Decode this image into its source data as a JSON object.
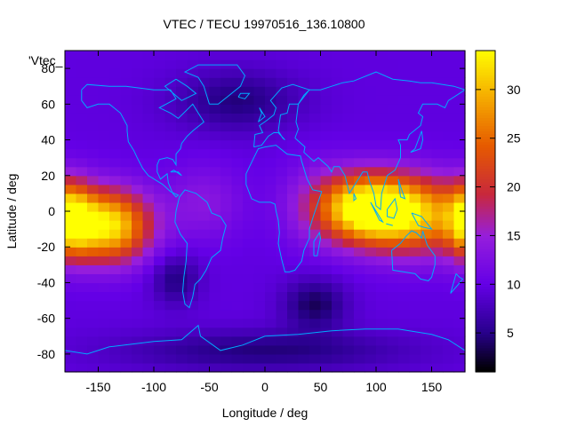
{
  "chart_data": {
    "type": "heatmap",
    "title": "VTEC / TECU 19970516_136.10800",
    "xlabel": "Longitude / deg",
    "ylabel": "Latitude / deg",
    "key_label": "'Vtec_",
    "xlim": [
      -180,
      180
    ],
    "ylim": [
      -90,
      90
    ],
    "x_ticks": [
      -150,
      -100,
      -50,
      0,
      50,
      100,
      150
    ],
    "y_ticks": [
      -80,
      -60,
      -40,
      -20,
      0,
      20,
      40,
      60,
      80
    ],
    "colorbar": {
      "range": [
        1,
        34
      ],
      "ticks": [
        5,
        10,
        15,
        20,
        25,
        30
      ],
      "palette": "black-blue-purple-red-orange-yellow"
    },
    "grid": false,
    "field": {
      "description_units": "TECU",
      "background_value": 9.5,
      "features": [
        {
          "lon": 90,
          "lat": 2,
          "peak": 23,
          "sigma_lon": 30,
          "sigma_lat": 13
        },
        {
          "lon": 135,
          "lat": -2,
          "peak": 18,
          "sigma_lon": 35,
          "sigma_lat": 15
        },
        {
          "lon": -140,
          "lat": -8,
          "peak": 23,
          "sigma_lon": 26,
          "sigma_lat": 14
        },
        {
          "lon": -175,
          "lat": -4,
          "peak": 16,
          "sigma_lon": 14,
          "sigma_lat": 14
        },
        {
          "lon": -55,
          "lat": 5,
          "peak": 4,
          "sigma_lon": 25,
          "sigma_lat": 15
        },
        {
          "lon": 45,
          "lat": 5,
          "peak": 3,
          "sigma_lon": 25,
          "sigma_lat": 18
        },
        {
          "lon": -80,
          "lat": -38,
          "peak": -5,
          "sigma_lon": 15,
          "sigma_lat": 10
        },
        {
          "lon": 45,
          "lat": -52,
          "peak": -6,
          "sigma_lon": 20,
          "sigma_lat": 10
        },
        {
          "lon": -25,
          "lat": 62,
          "peak": -5,
          "sigma_lon": 40,
          "sigma_lat": 12
        },
        {
          "lon": 0,
          "lat": -78,
          "peak": -5,
          "sigma_lon": 90,
          "sigma_lat": 8
        }
      ]
    },
    "coastlines_color": "#00aaff"
  }
}
